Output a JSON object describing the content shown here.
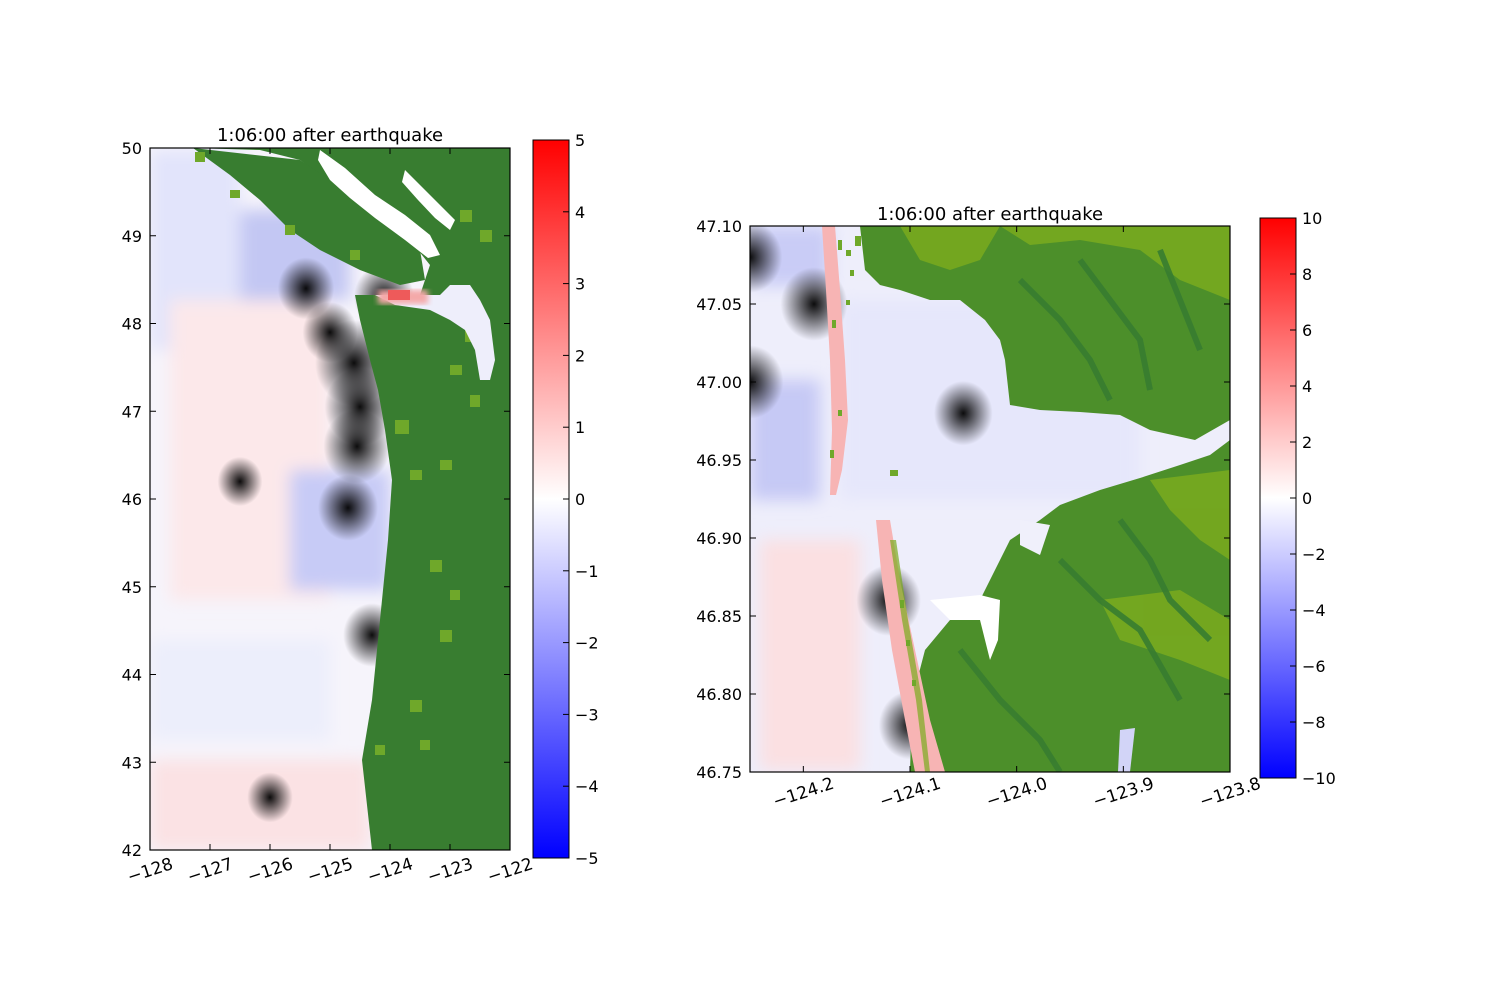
{
  "chart_data": [
    {
      "type": "heatmap",
      "title": "1:06:00 after earthquake",
      "xlabel": "",
      "ylabel": "",
      "xlim": [
        -128,
        -122
      ],
      "ylim": [
        42,
        50
      ],
      "xticks": [
        "−128",
        "−127",
        "−126",
        "−125",
        "−124",
        "−123",
        "−122"
      ],
      "yticks": [
        "42",
        "43",
        "44",
        "45",
        "46",
        "47",
        "48",
        "49",
        "50"
      ],
      "colorbar": {
        "range": [
          -5,
          5
        ],
        "ticks": [
          "−5",
          "−4",
          "−3",
          "−2",
          "−1",
          "0",
          "1",
          "2",
          "3",
          "4",
          "5"
        ],
        "colormap": "bwr"
      },
      "land_color": "#387d30",
      "land_light_color": "#6fa82a",
      "anomalies": [
        {
          "lon": -124.6,
          "lat": 47.55,
          "value": -5.0
        },
        {
          "lon": -124.5,
          "lat": 47.05,
          "value": -4.0
        },
        {
          "lon": -124.55,
          "lat": 46.6,
          "value": -3.5
        },
        {
          "lon": -124.7,
          "lat": 45.9,
          "value": -2.5
        },
        {
          "lon": -125.4,
          "lat": 48.4,
          "value": -2.0
        },
        {
          "lon": -124.3,
          "lat": 44.45,
          "value": 2.2
        },
        {
          "lon": -124.1,
          "lat": 48.3,
          "value": 2.5
        },
        {
          "lon": -125.0,
          "lat": 47.9,
          "value": 1.8
        },
        {
          "lon": -126.5,
          "lat": 46.2,
          "value": 0.4
        },
        {
          "lon": -126.0,
          "lat": 42.6,
          "value": 0.5
        }
      ]
    },
    {
      "type": "heatmap",
      "title": "1:06:00 after earthquake",
      "xlabel": "",
      "ylabel": "",
      "xlim": [
        -124.25,
        -123.8
      ],
      "ylim": [
        46.75,
        47.1
      ],
      "xticks": [
        "−124.2",
        "−124.1",
        "−124.0",
        "−123.9",
        "−123.8"
      ],
      "yticks": [
        "46.75",
        "46.80",
        "46.85",
        "46.90",
        "46.95",
        "47.00",
        "47.05",
        "47.10"
      ],
      "colorbar": {
        "range": [
          -10,
          10
        ],
        "ticks": [
          "−10",
          "−8",
          "−6",
          "−4",
          "−2",
          "0",
          "2",
          "4",
          "6",
          "8",
          "10"
        ],
        "colormap": "bwr"
      },
      "land_color": "#387d30",
      "land_light_color": "#7aab1e",
      "anomalies": [
        {
          "lon": -124.19,
          "lat": 47.05,
          "value": 3.0
        },
        {
          "lon": -124.25,
          "lat": 47.0,
          "value": -3.0
        },
        {
          "lon": -124.25,
          "lat": 47.08,
          "value": -2.5
        },
        {
          "lon": -124.12,
          "lat": 46.86,
          "value": 2.5
        },
        {
          "lon": -124.1,
          "lat": 46.78,
          "value": 2.0
        },
        {
          "lon": -124.05,
          "lat": 46.98,
          "value": -1.2
        }
      ]
    }
  ]
}
